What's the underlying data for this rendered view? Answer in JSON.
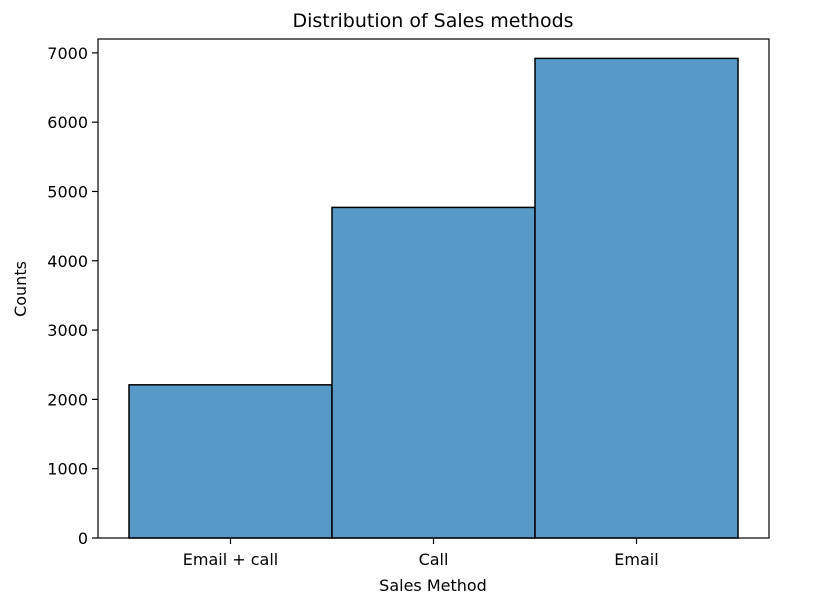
{
  "chart_data": {
    "type": "bar",
    "title": "Distribution of Sales methods",
    "xlabel": "Sales Method",
    "ylabel": "Counts",
    "categories": [
      "Email + call",
      "Call",
      "Email"
    ],
    "values": [
      2210,
      4770,
      6920
    ],
    "ylim": [
      0,
      7200
    ],
    "yticks": [
      0,
      1000,
      2000,
      3000,
      4000,
      5000,
      6000,
      7000
    ],
    "grid": false,
    "bar_color": "#5799c7",
    "edge_color": "#000000"
  }
}
